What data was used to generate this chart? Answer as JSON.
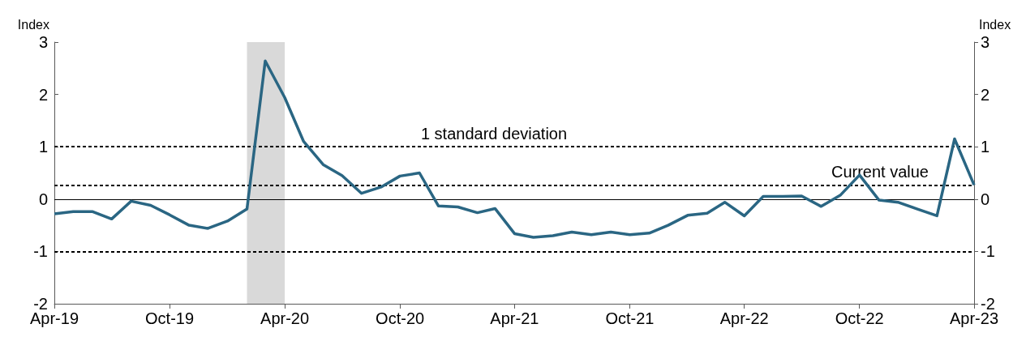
{
  "chart_data": {
    "type": "line",
    "ylabel": "Index",
    "y2label": "Index",
    "x": [
      "2019-04",
      "2019-05",
      "2019-06",
      "2019-07",
      "2019-08",
      "2019-09",
      "2019-10",
      "2019-11",
      "2019-12",
      "2020-01",
      "2020-02",
      "2020-03",
      "2020-04",
      "2020-05",
      "2020-06",
      "2020-07",
      "2020-08",
      "2020-09",
      "2020-10",
      "2020-11",
      "2020-12",
      "2021-01",
      "2021-02",
      "2021-03",
      "2021-04",
      "2021-05",
      "2021-06",
      "2021-07",
      "2021-08",
      "2021-09",
      "2021-10",
      "2021-11",
      "2021-12",
      "2022-01",
      "2022-02",
      "2022-03",
      "2022-04",
      "2022-05",
      "2022-06",
      "2022-07",
      "2022-08",
      "2022-09",
      "2022-10",
      "2022-11",
      "2022-12",
      "2023-01",
      "2023-02",
      "2023-03",
      "2023-04"
    ],
    "series": [
      {
        "color": "#2a6683",
        "values": [
          -0.28,
          -0.24,
          -0.24,
          -0.38,
          -0.04,
          -0.12,
          -0.3,
          -0.5,
          -0.56,
          -0.42,
          -0.19,
          2.64,
          1.94,
          1.1,
          0.66,
          0.45,
          0.11,
          0.23,
          0.44,
          0.5,
          -0.13,
          -0.15,
          -0.26,
          -0.18,
          -0.66,
          -0.73,
          -0.7,
          -0.63,
          -0.68,
          -0.63,
          -0.68,
          -0.65,
          -0.5,
          -0.31,
          -0.27,
          -0.06,
          -0.32,
          0.05,
          0.05,
          0.06,
          -0.14,
          0.08,
          0.46,
          -0.02,
          -0.06,
          -0.19,
          -0.32,
          1.15,
          0.27
        ]
      }
    ],
    "xlim": [
      "2019-04",
      "2023-04"
    ],
    "xticks": [
      {
        "value": "2019-04",
        "label": "Apr-19"
      },
      {
        "value": "2019-10",
        "label": "Oct-19"
      },
      {
        "value": "2020-04",
        "label": "Apr-20"
      },
      {
        "value": "2020-10",
        "label": "Oct-20"
      },
      {
        "value": "2021-04",
        "label": "Apr-21"
      },
      {
        "value": "2021-10",
        "label": "Oct-21"
      },
      {
        "value": "2022-04",
        "label": "Apr-22"
      },
      {
        "value": "2022-10",
        "label": "Oct-22"
      },
      {
        "value": "2023-04",
        "label": "Apr-23"
      }
    ],
    "ylim": [
      -2,
      3
    ],
    "yticks": [
      -2,
      -1,
      0,
      1,
      2,
      3
    ],
    "y2lim": [
      -2,
      3
    ],
    "y2ticks": [
      -2,
      -1,
      0,
      1,
      2,
      3
    ],
    "ref_lines": [
      {
        "axis": "y",
        "value": 0,
        "label": null,
        "line_style": "solid",
        "color": "#000000"
      },
      {
        "axis": "y",
        "value": 1,
        "label": "1 standard deviation",
        "line_style": "dashed",
        "color": "#000000"
      },
      {
        "axis": "y",
        "value": 0.27,
        "label": "Current value",
        "line_style": "dashed",
        "color": "#000000"
      },
      {
        "axis": "y",
        "value": -1,
        "label": null,
        "line_style": "dashed",
        "color": "#000000"
      }
    ],
    "bands": [
      {
        "axis": "x",
        "from": "2020-02",
        "to": "2020-04",
        "label": null,
        "color": "#d9d9d9"
      }
    ],
    "grid": false
  }
}
